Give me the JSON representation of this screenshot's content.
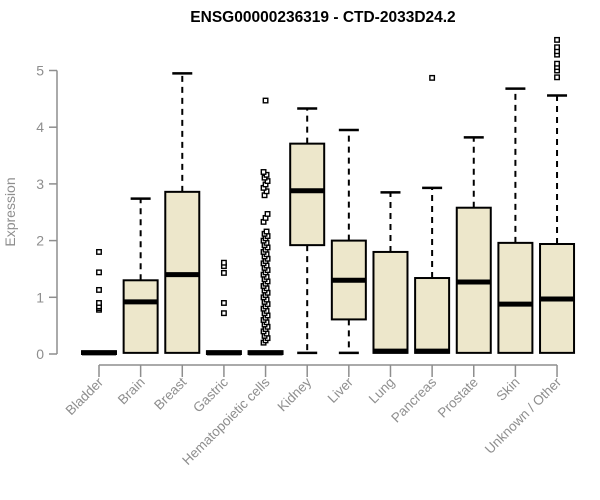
{
  "chart_data": {
    "type": "boxplot",
    "title": "ENSG00000236319 - CTD-2033D24.2",
    "ylabel": "Expression",
    "xlabel": "",
    "ylim": [
      0,
      5.6
    ],
    "yticks": [
      0,
      1,
      2,
      3,
      4,
      5
    ],
    "grid": false,
    "legend": "none",
    "categories": [
      "Bladder",
      "Brain",
      "Breast",
      "Gastric",
      "Hematopoietic cells",
      "Kidney",
      "Liver",
      "Lung",
      "Pancreas",
      "Prostate",
      "Skin",
      "Unknown / Other"
    ],
    "boxes": [
      {
        "category": "Bladder",
        "low": 0,
        "q1": 0,
        "median": 0.02,
        "q3": 0.05,
        "high": 0.05,
        "outliers": [
          0.78,
          0.81,
          0.84,
          0.9,
          1.13,
          1.44,
          1.8
        ]
      },
      {
        "category": "Brain",
        "low": 0,
        "q1": 0.02,
        "median": 0.92,
        "q3": 1.3,
        "high": 2.74,
        "outliers": []
      },
      {
        "category": "Breast",
        "low": 0,
        "q1": 0.02,
        "median": 1.4,
        "q3": 2.86,
        "high": 4.95,
        "outliers": []
      },
      {
        "category": "Gastric",
        "low": 0,
        "q1": 0,
        "median": 0.02,
        "q3": 0.05,
        "high": 0.05,
        "outliers": [
          0.72,
          0.9,
          1.43,
          1.55,
          1.61
        ]
      },
      {
        "category": "Hematopoietic cells",
        "low": 0,
        "q1": 0,
        "median": 0.02,
        "q3": 0.05,
        "high": 0.05,
        "outliers": [
          0.2,
          0.24,
          0.28,
          0.32,
          0.36,
          0.4,
          0.44,
          0.48,
          0.52,
          0.56,
          0.6,
          0.64,
          0.68,
          0.72,
          0.76,
          0.8,
          0.84,
          0.88,
          0.92,
          0.96,
          1.0,
          1.04,
          1.08,
          1.12,
          1.16,
          1.2,
          1.24,
          1.28,
          1.32,
          1.36,
          1.4,
          1.44,
          1.48,
          1.52,
          1.56,
          1.6,
          1.64,
          1.68,
          1.72,
          1.76,
          1.8,
          1.84,
          1.88,
          1.92,
          1.96,
          2.0,
          2.04,
          2.08,
          2.12,
          2.16,
          2.33,
          2.4,
          2.47,
          2.8,
          2.87,
          2.93,
          2.99,
          3.05,
          3.11,
          3.16,
          3.21,
          4.47
        ]
      },
      {
        "category": "Kidney",
        "low": 0.02,
        "q1": 1.92,
        "median": 2.88,
        "q3": 3.71,
        "high": 4.33,
        "outliers": []
      },
      {
        "category": "Liver",
        "low": 0.02,
        "q1": 0.61,
        "median": 1.3,
        "q3": 2.0,
        "high": 3.95,
        "outliers": []
      },
      {
        "category": "Lung",
        "low": 0,
        "q1": 0.02,
        "median": 0.05,
        "q3": 1.8,
        "high": 2.85,
        "outliers": []
      },
      {
        "category": "Pancreas",
        "low": 0,
        "q1": 0.02,
        "median": 0.05,
        "q3": 1.34,
        "high": 2.93,
        "outliers": [
          4.87
        ]
      },
      {
        "category": "Prostate",
        "low": 0,
        "q1": 0.02,
        "median": 1.27,
        "q3": 2.58,
        "high": 3.82,
        "outliers": []
      },
      {
        "category": "Skin",
        "low": 0,
        "q1": 0.02,
        "median": 0.88,
        "q3": 1.96,
        "high": 4.68,
        "outliers": []
      },
      {
        "category": "Unknown / Other",
        "low": 0,
        "q1": 0.02,
        "median": 0.97,
        "q3": 1.94,
        "high": 4.56,
        "outliers": [
          4.88,
          5.0,
          5.06,
          5.12,
          5.28,
          5.34,
          5.41,
          5.54
        ]
      }
    ],
    "colors": {
      "box_fill": "#EDE7CB",
      "box_border": "#000000",
      "median": "#000000",
      "whisker": "#000000",
      "outlier_stroke": "#000000",
      "outlier_fill": "#ffffff",
      "axis": "#8e8e8e",
      "tick_label": "#8e8e8e",
      "title": "#000000",
      "background": "#ffffff"
    }
  }
}
